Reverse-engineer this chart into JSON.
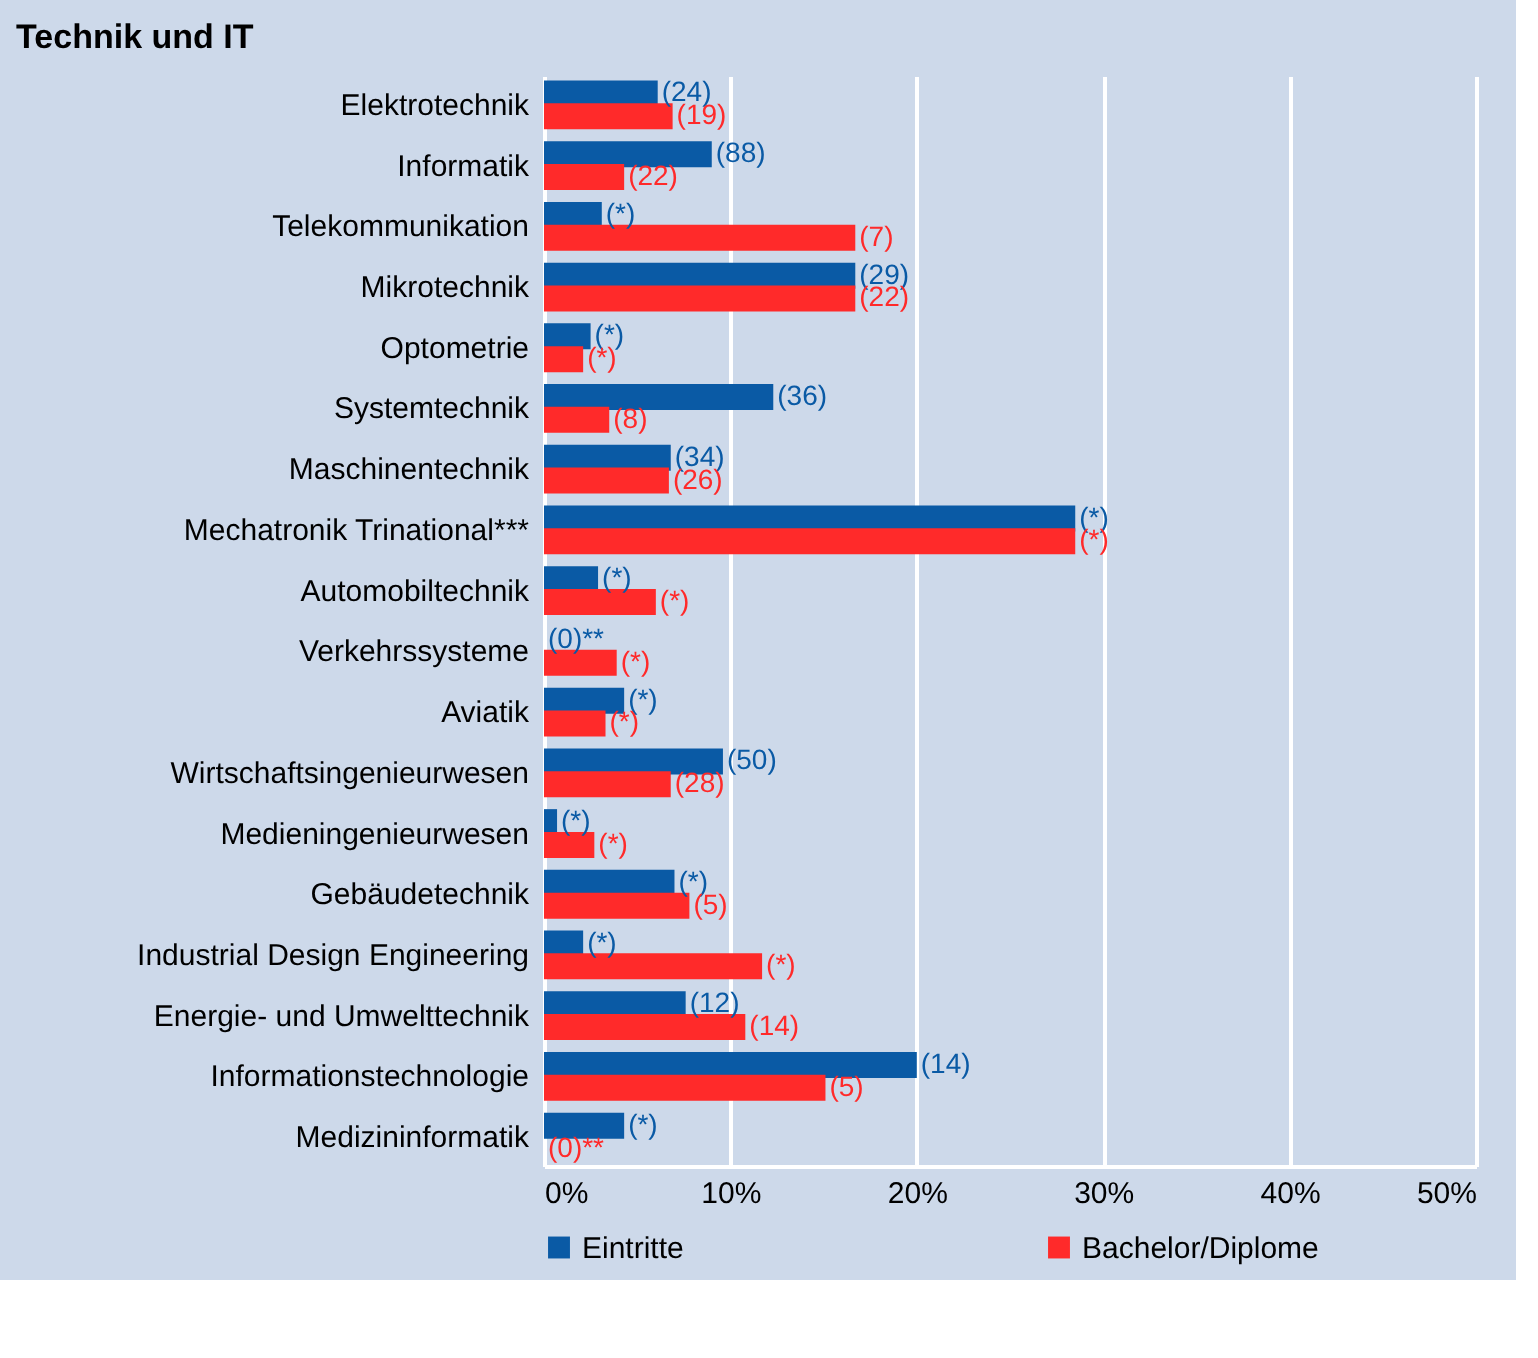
{
  "chart_data": {
    "type": "bar",
    "orientation": "horizontal",
    "title": "Technik und IT",
    "categories": [
      "Elektrotechnik",
      "Informatik",
      "Telekommunikation",
      "Mikrotechnik",
      "Optometrie",
      "Systemtechnik",
      "Maschinentechnik",
      "Mechatronik Trinational***",
      "Automobiltechnik",
      "Verkehrssysteme",
      "Aviatik",
      "Wirtschaftsingenieurwesen",
      "Medieningenieurwesen",
      "Gebäudetechnik",
      "Industrial Design Engineering",
      "Energie- und Umwelttechnik",
      "Informationstechnologie",
      "Medizininformatik"
    ],
    "series": [
      {
        "name": "Eintritte",
        "color": "#0a5aa5",
        "values": [
          6.1,
          9.0,
          3.1,
          16.7,
          2.5,
          12.3,
          6.8,
          28.5,
          2.9,
          0,
          4.3,
          9.6,
          0.7,
          7.0,
          2.1,
          7.6,
          20.0,
          4.3
        ]
      },
      {
        "name": "Bachelor/Diplome",
        "color": "#ff2a2a",
        "values": [
          6.9,
          4.3,
          16.7,
          16.7,
          2.1,
          3.5,
          6.7,
          28.5,
          6.0,
          3.9,
          3.3,
          6.8,
          2.7,
          7.8,
          11.7,
          10.8,
          15.1,
          0
        ]
      }
    ],
    "annotations": [
      {
        "text": "(24)",
        "x": 6.1,
        "y": "Elektrotechnik"
      },
      {
        "text": "(19)",
        "x": 6.9,
        "y": "Elektrotechnik"
      },
      {
        "text": "(88)",
        "x": 9.0,
        "y": "Informatik"
      },
      {
        "text": "(22)",
        "x": 4.3,
        "y": "Informatik"
      },
      {
        "text": "(*)",
        "x": 3.1,
        "y": "Telekommunikation"
      },
      {
        "text": "(7)",
        "x": 16.7,
        "y": "Telekommunikation"
      },
      {
        "text": "(29)",
        "x": 16.7,
        "y": "Mikrotechnik"
      },
      {
        "text": "(22)",
        "x": 16.7,
        "y": "Mikrotechnik"
      },
      {
        "text": "(*)",
        "x": 2.5,
        "y": "Optometrie"
      },
      {
        "text": "(*)",
        "x": 2.1,
        "y": "Optometrie"
      },
      {
        "text": "(36)",
        "x": 12.3,
        "y": "Systemtechnik"
      },
      {
        "text": "(8)",
        "x": 3.5,
        "y": "Systemtechnik"
      },
      {
        "text": "(34)",
        "x": 6.8,
        "y": "Maschinentechnik"
      },
      {
        "text": "(26)",
        "x": 6.7,
        "y": "Maschinentechnik"
      },
      {
        "text": "(*)",
        "x": 28.5,
        "y": "Mechatronik Trinational***"
      },
      {
        "text": "(*)",
        "x": 28.5,
        "y": "Mechatronik Trinational***"
      },
      {
        "text": "(*)",
        "x": 2.9,
        "y": "Automobiltechnik"
      },
      {
        "text": "(*)",
        "x": 6.0,
        "y": "Automobiltechnik"
      },
      {
        "text": "(0)**",
        "x": 0,
        "y": "Verkehrssysteme"
      },
      {
        "text": "(*)",
        "x": 3.9,
        "y": "Verkehrssysteme"
      },
      {
        "text": "(*)",
        "x": 4.3,
        "y": "Aviatik"
      },
      {
        "text": "(*)",
        "x": 3.3,
        "y": "Aviatik"
      },
      {
        "text": "(50)",
        "x": 9.6,
        "y": "Wirtschaftsingenieurwesen"
      },
      {
        "text": "(28)",
        "x": 6.8,
        "y": "Wirtschaftsingenieurwesen"
      },
      {
        "text": "(*)",
        "x": 0.7,
        "y": "Medieningenieurwesen"
      },
      {
        "text": "(*)",
        "x": 2.7,
        "y": "Medieningenieurwesen"
      },
      {
        "text": "(*)",
        "x": 7.0,
        "y": "Gebäudetechnik"
      },
      {
        "text": "(5)",
        "x": 7.8,
        "y": "Gebäudetechnik"
      },
      {
        "text": "(*)",
        "x": 2.1,
        "y": "Industrial Design Engineering"
      },
      {
        "text": "(*)",
        "x": 11.7,
        "y": "Industrial Design Engineering"
      },
      {
        "text": "(12)",
        "x": 7.6,
        "y": "Energie- und Umwelttechnik"
      },
      {
        "text": "(14)",
        "x": 10.8,
        "y": "Energie- und Umwelttechnik"
      },
      {
        "text": "(14)",
        "x": 20.0,
        "y": "Informationstechnologie"
      },
      {
        "text": "(5)",
        "x": 15.1,
        "y": "Informationstechnologie"
      },
      {
        "text": "(*)",
        "x": 4.3,
        "y": "Medizininformatik"
      },
      {
        "text": "(0)**",
        "x": 0,
        "y": "Medizininformatik"
      }
    ],
    "xlim": [
      0,
      50
    ],
    "xticks": [
      {
        "value": 0,
        "label": "0%"
      },
      {
        "value": 10,
        "label": "10%"
      },
      {
        "value": 20,
        "label": "20%"
      },
      {
        "value": 30,
        "label": "30%"
      },
      {
        "value": 40,
        "label": "40%"
      },
      {
        "value": 50,
        "label": "50%"
      }
    ],
    "grid": "x",
    "legend": "bottom"
  }
}
